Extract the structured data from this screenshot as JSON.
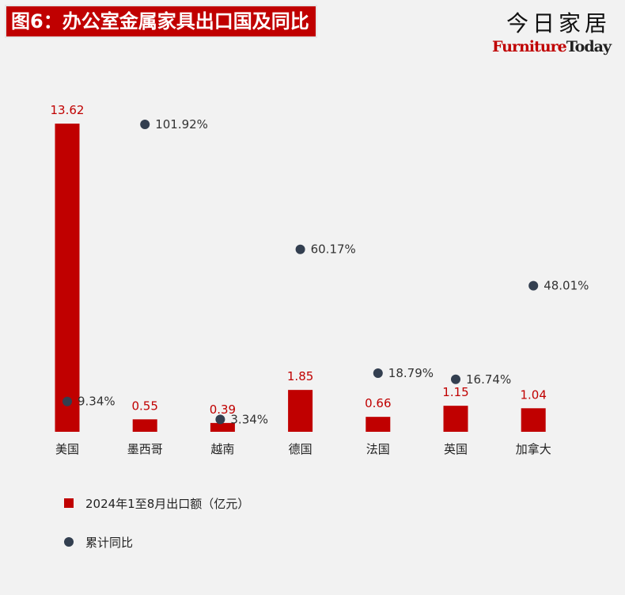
{
  "header": {
    "title": "图6：办公室金属家具出口国及同比",
    "brand_cn": "今日家居",
    "brand_en_a": "Furniture",
    "brand_en_b": "Today"
  },
  "colors": {
    "bar": "#c00000",
    "dot": "#333f50",
    "background": "#f2f2f2"
  },
  "chart_data": {
    "type": "bar",
    "categories": [
      "美国",
      "墨西哥",
      "越南",
      "德国",
      "法国",
      "英国",
      "加拿大"
    ],
    "series": [
      {
        "name": "2024年1至8月出口额（亿元）",
        "kind": "bar",
        "values": [
          13.62,
          0.55,
          0.39,
          1.85,
          0.66,
          1.15,
          1.04
        ],
        "labels": [
          "13.62",
          "0.55",
          "0.39",
          "1.85",
          "0.66",
          "1.15",
          "1.04"
        ]
      },
      {
        "name": "累计同比",
        "kind": "scatter",
        "values": [
          9.34,
          101.92,
          3.34,
          60.17,
          18.79,
          16.74,
          48.01
        ],
        "labels": [
          "9.34%",
          "101.92%",
          "3.34%",
          "60.17%",
          "18.79%",
          "16.74%",
          "48.01%"
        ]
      }
    ],
    "ylim_bar": [
      0,
      13.62
    ],
    "ylim_pct": [
      0,
      101.92
    ],
    "legend": "bottom-left",
    "grid": false
  }
}
